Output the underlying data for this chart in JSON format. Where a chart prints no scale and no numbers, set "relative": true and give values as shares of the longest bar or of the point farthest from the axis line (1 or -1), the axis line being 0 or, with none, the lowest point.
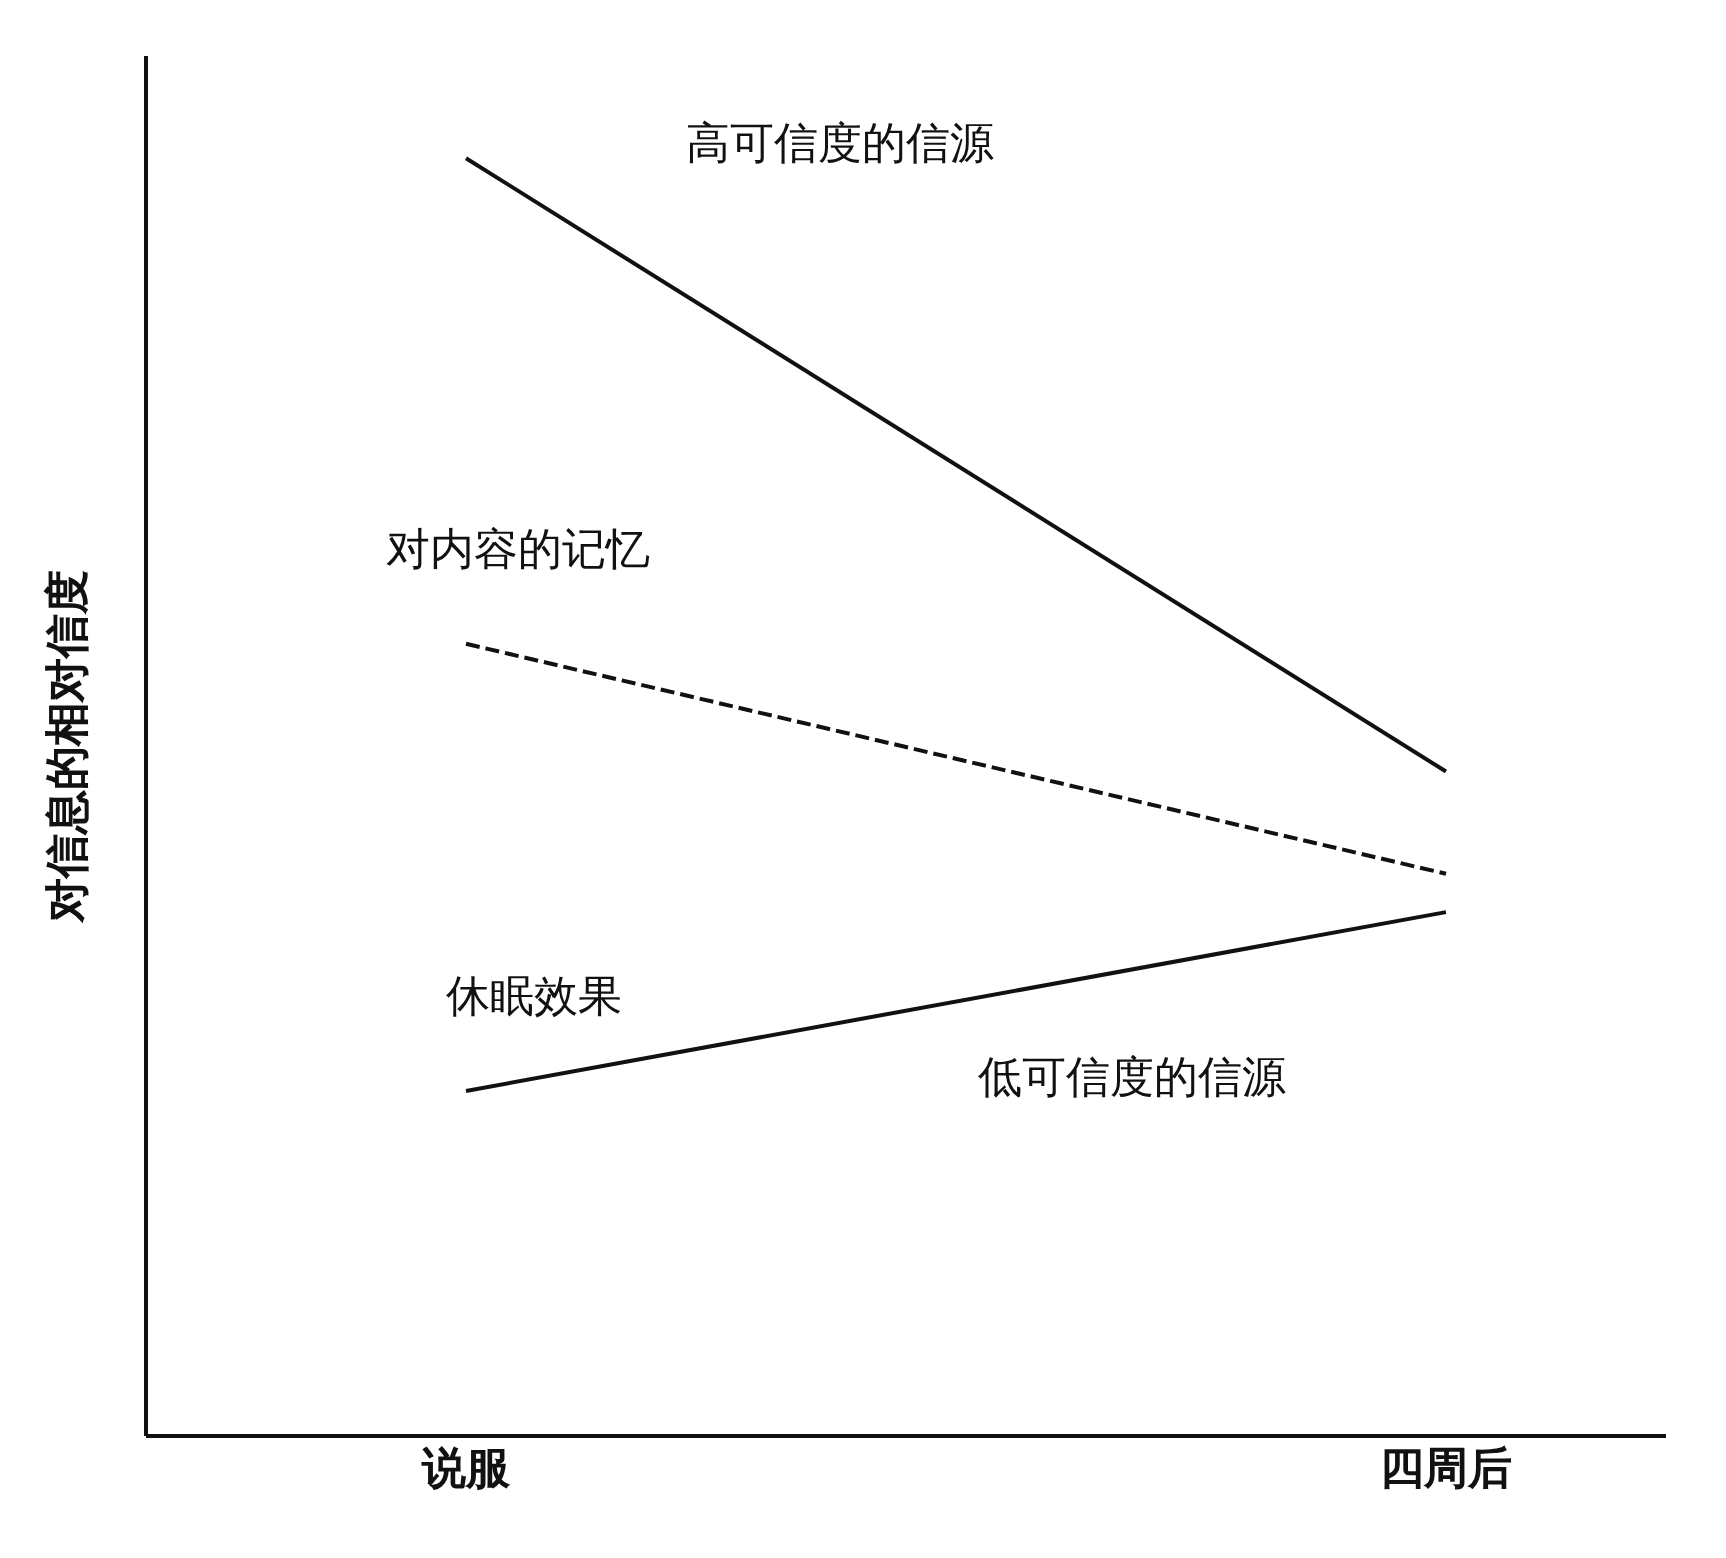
{
  "chart_data": {
    "type": "line",
    "relative": true,
    "ylabel": "对信息的相对信度",
    "categories": [
      "说服",
      "四周后"
    ],
    "series": [
      {
        "name": "高可信度的信源",
        "color": "#111111",
        "values": [
          1,
          0.52
        ],
        "line_style": "solid"
      },
      {
        "name": "对内容的记忆",
        "color": "#111111",
        "values": [
          0.62,
          0.44
        ],
        "line_style": "dashed"
      },
      {
        "name": "低可信度的信源",
        "color": "#111111",
        "values": [
          0.27,
          0.41
        ],
        "line_style": "solid"
      }
    ],
    "annotations": [
      "休眠效果"
    ],
    "marker": "none"
  }
}
